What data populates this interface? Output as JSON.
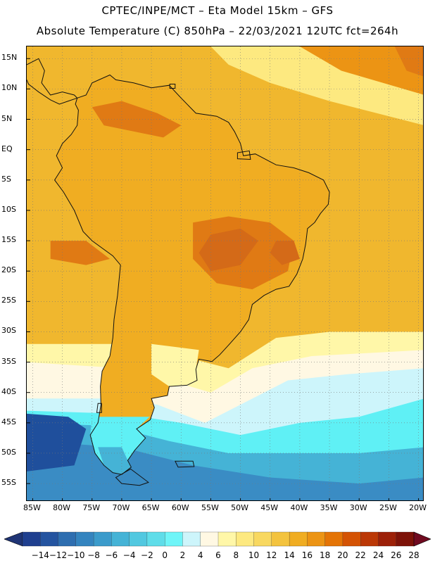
{
  "header": {
    "title_line1": "CPTEC/INPE/MCT –  Eta Model 15km – GFS",
    "title_line2": "Absolute Temperature (C) 850hPa – 22/03/2021 12UTC fct=264h"
  },
  "map": {
    "lon_range": [
      -86,
      -19
    ],
    "lat_range": [
      -58,
      17
    ],
    "lat_ticks": [
      {
        "value": 15,
        "label": "15N"
      },
      {
        "value": 10,
        "label": "10N"
      },
      {
        "value": 5,
        "label": "5N"
      },
      {
        "value": 0,
        "label": "EQ"
      },
      {
        "value": -5,
        "label": "5S"
      },
      {
        "value": -10,
        "label": "10S"
      },
      {
        "value": -15,
        "label": "15S"
      },
      {
        "value": -20,
        "label": "20S"
      },
      {
        "value": -25,
        "label": "25S"
      },
      {
        "value": -30,
        "label": "30S"
      },
      {
        "value": -35,
        "label": "35S"
      },
      {
        "value": -40,
        "label": "40S"
      },
      {
        "value": -45,
        "label": "45S"
      },
      {
        "value": -50,
        "label": "50S"
      },
      {
        "value": -55,
        "label": "55S"
      }
    ],
    "lon_ticks": [
      {
        "value": -85,
        "label": "85W"
      },
      {
        "value": -80,
        "label": "80W"
      },
      {
        "value": -75,
        "label": "75W"
      },
      {
        "value": -70,
        "label": "70W"
      },
      {
        "value": -65,
        "label": "65W"
      },
      {
        "value": -60,
        "label": "60W"
      },
      {
        "value": -55,
        "label": "55W"
      },
      {
        "value": -50,
        "label": "50W"
      },
      {
        "value": -45,
        "label": "45W"
      },
      {
        "value": -40,
        "label": "40W"
      },
      {
        "value": -35,
        "label": "35W"
      },
      {
        "value": -30,
        "label": "30W"
      },
      {
        "value": -25,
        "label": "25W"
      },
      {
        "value": -20,
        "label": "20W"
      }
    ]
  },
  "colorbar": {
    "labels": [
      "−14",
      "−12",
      "−10",
      "−8",
      "−6",
      "−4",
      "−2",
      "0",
      "2",
      "4",
      "6",
      "8",
      "10",
      "12",
      "14",
      "16",
      "18",
      "20",
      "22",
      "24",
      "26",
      "28"
    ],
    "colors": [
      "#1f3f8f",
      "#2454a0",
      "#2e6eb0",
      "#3484bf",
      "#3b9bcb",
      "#45b3d6",
      "#52c8e0",
      "#5fdde9",
      "#6ff5f8",
      "#cdf5fb",
      "#fff8e3",
      "#fff7a8",
      "#fde980",
      "#f8d860",
      "#f3c33e",
      "#f0ad22",
      "#ec9414",
      "#e47406",
      "#d45304",
      "#bb3806",
      "#9c2008",
      "#7d1208"
    ],
    "under_color": "#1f3475",
    "over_color": "#700a20"
  },
  "fields": {
    "ocean_warm": "#f0b72e",
    "north_atlantic": "#fde980",
    "north_atlantic_hot": "#ec9414",
    "land": "#f0ad22",
    "land_hot": "#e07a14",
    "land_hottest": "#d46a18",
    "pale_yellow": "#fff7a8",
    "cream": "#fff8e3",
    "light_cyan": "#cdf5fb",
    "cyan": "#5ff0f5",
    "blue_mid": "#45b3d6",
    "blue_dark": "#3a8cc4",
    "blue_deep": "#1f4f9c",
    "coast_color": "#111111"
  }
}
